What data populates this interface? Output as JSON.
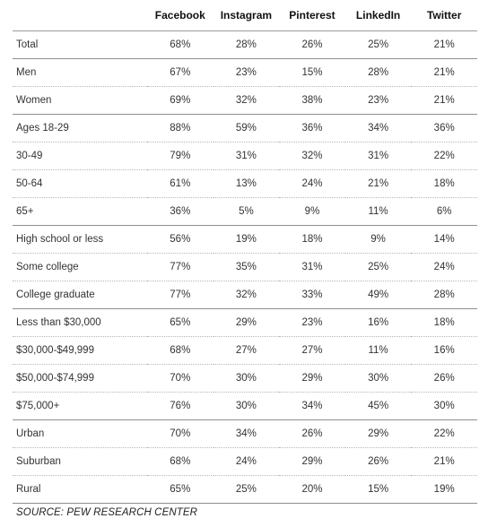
{
  "table": {
    "columns": [
      "",
      "Facebook",
      "Instagram",
      "Pinterest",
      "LinkedIn",
      "Twitter"
    ],
    "rows": [
      {
        "label": "Total",
        "values": [
          "68%",
          "28%",
          "26%",
          "25%",
          "21%"
        ],
        "group_end": true
      },
      {
        "label": "Men",
        "values": [
          "67%",
          "23%",
          "15%",
          "28%",
          "21%"
        ],
        "group_end": false
      },
      {
        "label": "Women",
        "values": [
          "69%",
          "32%",
          "38%",
          "23%",
          "21%"
        ],
        "group_end": true
      },
      {
        "label": "Ages 18-29",
        "values": [
          "88%",
          "59%",
          "36%",
          "34%",
          "36%"
        ],
        "group_end": false
      },
      {
        "label": "30-49",
        "values": [
          "79%",
          "31%",
          "32%",
          "31%",
          "22%"
        ],
        "group_end": false
      },
      {
        "label": "50-64",
        "values": [
          "61%",
          "13%",
          "24%",
          "21%",
          "18%"
        ],
        "group_end": false
      },
      {
        "label": "65+",
        "values": [
          "36%",
          "5%",
          "9%",
          "11%",
          "6%"
        ],
        "group_end": true
      },
      {
        "label": "High school or less",
        "values": [
          "56%",
          "19%",
          "18%",
          "9%",
          "14%"
        ],
        "group_end": false
      },
      {
        "label": "Some college",
        "values": [
          "77%",
          "35%",
          "31%",
          "25%",
          "24%"
        ],
        "group_end": false
      },
      {
        "label": "College graduate",
        "values": [
          "77%",
          "32%",
          "33%",
          "49%",
          "28%"
        ],
        "group_end": true
      },
      {
        "label": "Less than $30,000",
        "values": [
          "65%",
          "29%",
          "23%",
          "16%",
          "18%"
        ],
        "group_end": false
      },
      {
        "label": "$30,000-$49,999",
        "values": [
          "68%",
          "27%",
          "27%",
          "11%",
          "16%"
        ],
        "group_end": false
      },
      {
        "label": "$50,000-$74,999",
        "values": [
          "70%",
          "30%",
          "29%",
          "30%",
          "26%"
        ],
        "group_end": false
      },
      {
        "label": "$75,000+",
        "values": [
          "76%",
          "30%",
          "34%",
          "45%",
          "30%"
        ],
        "group_end": true
      },
      {
        "label": "Urban",
        "values": [
          "70%",
          "34%",
          "26%",
          "29%",
          "22%"
        ],
        "group_end": false
      },
      {
        "label": "Suburban",
        "values": [
          "68%",
          "24%",
          "29%",
          "26%",
          "21%"
        ],
        "group_end": false
      },
      {
        "label": "Rural",
        "values": [
          "65%",
          "25%",
          "20%",
          "15%",
          "19%"
        ],
        "group_end": true
      }
    ]
  },
  "source": "SOURCE: PEW RESEARCH CENTER"
}
